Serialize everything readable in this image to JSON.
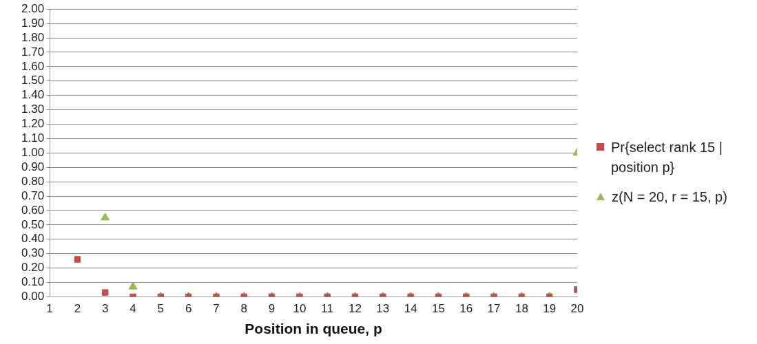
{
  "chart_data": {
    "type": "scatter",
    "xlabel": "Position in queue, p",
    "x": [
      2,
      3,
      4,
      5,
      6,
      7,
      8,
      9,
      10,
      11,
      12,
      13,
      14,
      15,
      16,
      17,
      18,
      19,
      20
    ],
    "series": [
      {
        "name": "Pr{select rank 15 | position p}",
        "color": "#c0504d",
        "marker": "square",
        "values": [
          0.26,
          0.03,
          0.0,
          0,
          0,
          0,
          0,
          0,
          0,
          0,
          0,
          0,
          0,
          0,
          0,
          0,
          0,
          0,
          0.05
        ]
      },
      {
        "name": "z(N = 20, r = 15, p)",
        "color": "#9bbb59",
        "marker": "triangle",
        "values": [
          null,
          0.55,
          0.07,
          0,
          0,
          0,
          0,
          0,
          0,
          0,
          0,
          0,
          0,
          0,
          0,
          0,
          0,
          0,
          1.0
        ]
      }
    ],
    "xlim": [
      1,
      20
    ],
    "xticks": [
      1,
      2,
      3,
      4,
      5,
      6,
      7,
      8,
      9,
      10,
      11,
      12,
      13,
      14,
      15,
      16,
      17,
      18,
      19,
      20
    ],
    "ylim": [
      0,
      2
    ],
    "yticks": [
      {
        "value": 0,
        "label": "0.00"
      },
      {
        "value": 0.1,
        "label": "0.10"
      },
      {
        "value": 0.2,
        "label": "0.20"
      },
      {
        "value": 0.3,
        "label": "0.30"
      },
      {
        "value": 0.4,
        "label": "0.40"
      },
      {
        "value": 0.5,
        "label": "0.50"
      },
      {
        "value": 0.6,
        "label": "0.60"
      },
      {
        "value": 0.7,
        "label": "0.70"
      },
      {
        "value": 0.8,
        "label": "0.80"
      },
      {
        "value": 0.9,
        "label": "0.90"
      },
      {
        "value": 1,
        "label": "1.00"
      },
      {
        "value": 1.1,
        "label": "1.10"
      },
      {
        "value": 1.2,
        "label": "1.20"
      },
      {
        "value": 1.3,
        "label": "1.30"
      },
      {
        "value": 1.4,
        "label": "1.40"
      },
      {
        "value": 1.5,
        "label": "1.50"
      },
      {
        "value": 1.6,
        "label": "1.60"
      },
      {
        "value": 1.7,
        "label": "1.70"
      },
      {
        "value": 1.8,
        "label": "1.80"
      },
      {
        "value": 1.9,
        "label": "1.90"
      },
      {
        "value": 2,
        "label": "2.00"
      }
    ],
    "grid": "y",
    "legend": "right"
  }
}
